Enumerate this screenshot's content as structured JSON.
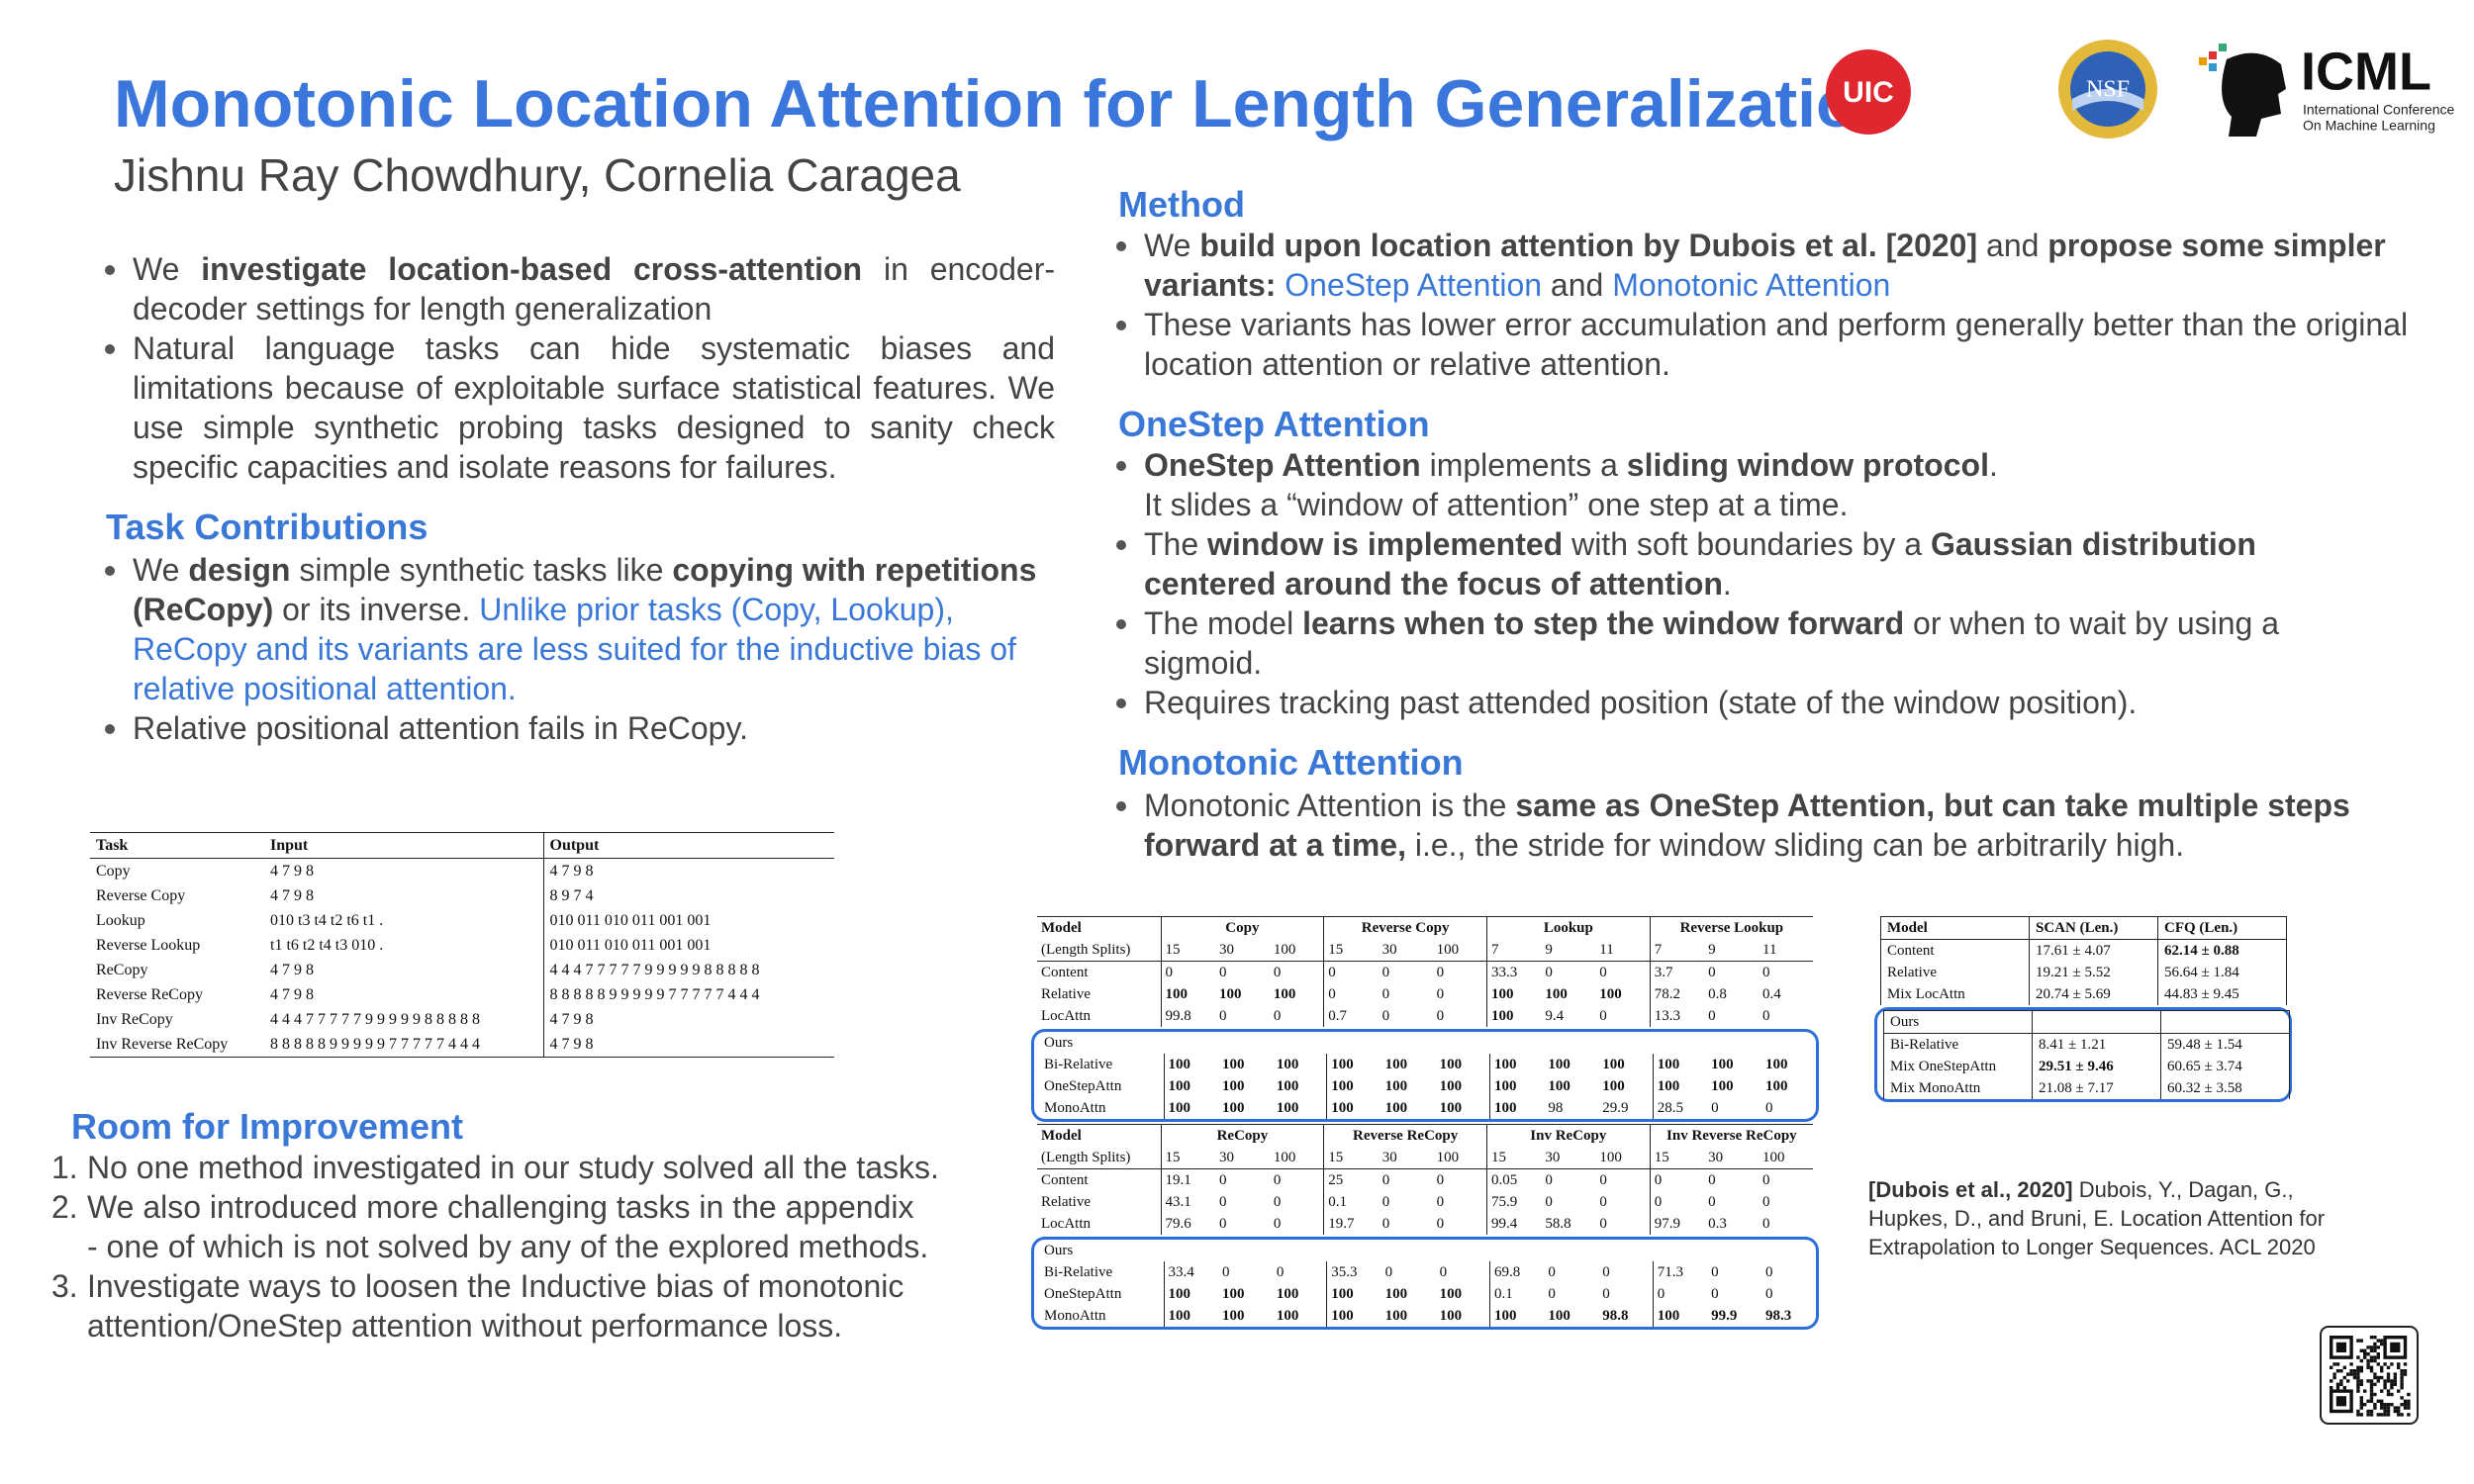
{
  "header": {
    "title": "Monotonic Location Attention for Length Generalization",
    "authors": "Jishnu Ray Chowdhury, Cornelia Caragea",
    "logos": {
      "uic": "UIC",
      "nsf": "NSF",
      "icml": "ICML",
      "icml_subtitle": [
        "International Conference",
        "On Machine Learning"
      ]
    }
  },
  "intro": {
    "bullets": [
      [
        {
          "text": "We "
        },
        {
          "text": "investigate location-based cross-attention",
          "style": "bold"
        },
        {
          "text": " in encoder-decoder settings for length generalization"
        }
      ],
      [
        {
          "text": "Natural language tasks can hide systematic biases and limitations because of exploitable surface statistical features. We use simple synthetic probing tasks designed to sanity check specific capacities and isolate reasons for failures."
        }
      ]
    ]
  },
  "task_contributions": {
    "heading": "Task Contributions",
    "bullets": [
      [
        {
          "text": "We "
        },
        {
          "text": "design",
          "style": "bold"
        },
        {
          "text": " simple synthetic tasks like "
        },
        {
          "text": "copying with repetitions (ReCopy)",
          "style": "bold"
        },
        {
          "text": " or its inverse. "
        },
        {
          "text": "Unlike prior tasks (Copy, Lookup), ReCopy and its variants are less suited for the inductive bias of relative positional attention.",
          "style": "blue"
        }
      ],
      [
        {
          "text": "Relative positional attention fails in ReCopy."
        }
      ]
    ]
  },
  "task_table": {
    "header": [
      "Task",
      "Input",
      "Output"
    ],
    "rows": [
      [
        "Copy",
        "4 7 9 8",
        "4 7 9 8"
      ],
      [
        "Reverse Copy",
        "4 7 9 8",
        "8 9 7 4"
      ],
      [
        "Lookup",
        "010 t3 t4 t2 t6 t1 .",
        "010 011 010 011 001 001"
      ],
      [
        "Reverse Lookup",
        "t1 t6 t2 t4 t3 010 .",
        "010 011 010 011 001 001"
      ],
      [
        "ReCopy",
        "4 7 9 8",
        "4 4 4 7 7 7 7 7 9 9 9 9 9 8 8 8 8 8"
      ],
      [
        "Reverse ReCopy",
        "4 7 9 8",
        "8 8 8 8 8 9 9 9 9 9 7 7 7 7 7 4 4 4"
      ],
      [
        "Inv ReCopy",
        "4 4 4 7 7 7 7 7 9 9 9 9 9 8 8 8 8 8",
        "4 7 9 8"
      ],
      [
        "Inv Reverse ReCopy",
        "8 8 8 8 8 9 9 9 9 9 7 7 7 7 7 4 4 4",
        "4 7 9 8"
      ]
    ]
  },
  "room_for_improvement": {
    "heading": "Room for Improvement",
    "items": [
      {
        "number": "1.",
        "text": "No one method investigated in our study solved all the tasks."
      },
      {
        "number": "2.",
        "text": "We also  introduced more challenging tasks in the appendix\n- one of which is not solved by any of the explored methods."
      },
      {
        "number": "3.",
        "text": "Investigate ways to loosen the Inductive bias of monotonic attention/OneStep attention without performance loss."
      }
    ]
  },
  "method": {
    "heading": "Method",
    "bullets": [
      [
        {
          "text": "We "
        },
        {
          "text": "build upon location attention by Dubois et al. [2020]",
          "style": "bold"
        },
        {
          "text": "  and "
        },
        {
          "text": "propose some simpler variants: ",
          "style": "bold"
        },
        {
          "text": "OneStep Attention",
          "style": "blue"
        },
        {
          "text": " and "
        },
        {
          "text": "Monotonic Attention",
          "style": "blue"
        }
      ],
      [
        {
          "text": "These variants has lower error accumulation and perform generally better than the original location attention or relative attention."
        }
      ]
    ]
  },
  "onestep": {
    "heading": "OneStep Attention",
    "bullets": [
      [
        {
          "text": "OneStep Attention",
          "style": "bold"
        },
        {
          "text": " implements a "
        },
        {
          "text": "sliding window protocol",
          "style": "bold"
        },
        {
          "text": ".\nIt slides a “window of attention” one step at a time."
        }
      ],
      [
        {
          "text": "The "
        },
        {
          "text": "window is implemented",
          "style": "bold"
        },
        {
          "text": " with soft boundaries by a "
        },
        {
          "text": "Gaussian distribution centered around the focus of attention",
          "style": "bold"
        },
        {
          "text": "."
        }
      ],
      [
        {
          "text": "The model "
        },
        {
          "text": "learns when to step the window forward",
          "style": "bold"
        },
        {
          "text": " or when to wait by using a sigmoid."
        }
      ],
      [
        {
          "text": "Requires tracking past attended position (state of the window position)."
        }
      ]
    ]
  },
  "monotonic": {
    "heading": "Monotonic Attention",
    "bullets": [
      [
        {
          "text": "Monotonic Attention is the "
        },
        {
          "text": "same as OneStep Attention, but can take multiple steps forward at a time,",
          "style": "bold"
        },
        {
          "text": " i.e., the stride for window sliding can be arbitrarily high."
        }
      ]
    ]
  },
  "results_table": {
    "header_model": "Model",
    "splits_label": "(Length Splits)",
    "ours_label": "Ours",
    "blocks": [
      {
        "groups": [
          "Copy",
          "Reverse Copy",
          "Lookup",
          "Reverse Lookup"
        ],
        "splits": [
          [
            "15",
            "30",
            "100"
          ],
          [
            "15",
            "30",
            "100"
          ],
          [
            "7",
            "9",
            "11"
          ],
          [
            "7",
            "9",
            "11"
          ]
        ],
        "rows": [
          {
            "model": "Content",
            "cells": [
              "0",
              "0",
              "0",
              "0",
              "0",
              "0",
              "33.3",
              "0",
              "0",
              "3.7",
              "0",
              "0"
            ]
          },
          {
            "model": "Relative",
            "cells": [
              "100",
              "100",
              "100",
              "0",
              "0",
              "0",
              "100",
              "100",
              "100",
              "78.2",
              "0.8",
              "0.4"
            ]
          },
          {
            "model": "LocAttn",
            "cells": [
              "99.8",
              "0",
              "0",
              "0.7",
              "0",
              "0",
              "100",
              "9.4",
              "0",
              "13.3",
              "0",
              "0"
            ]
          }
        ],
        "ours_rows": [
          {
            "model": "Bi-Relative",
            "cells": [
              "100",
              "100",
              "100",
              "100",
              "100",
              "100",
              "100",
              "100",
              "100",
              "100",
              "100",
              "100"
            ]
          },
          {
            "model": "OneStepAttn",
            "cells": [
              "100",
              "100",
              "100",
              "100",
              "100",
              "100",
              "100",
              "100",
              "100",
              "100",
              "100",
              "100"
            ]
          },
          {
            "model": "MonoAttn",
            "cells": [
              "100",
              "100",
              "100",
              "100",
              "100",
              "100",
              "100",
              "98",
              "29.9",
              "28.5",
              "0",
              "0"
            ]
          }
        ]
      },
      {
        "groups": [
          "ReCopy",
          "Reverse ReCopy",
          "Inv ReCopy",
          "Inv Reverse ReCopy"
        ],
        "splits": [
          [
            "15",
            "30",
            "100"
          ],
          [
            "15",
            "30",
            "100"
          ],
          [
            "15",
            "30",
            "100"
          ],
          [
            "15",
            "30",
            "100"
          ]
        ],
        "rows": [
          {
            "model": "Content",
            "cells": [
              "19.1",
              "0",
              "0",
              "25",
              "0",
              "0",
              "0.05",
              "0",
              "0",
              "0",
              "0",
              "0"
            ]
          },
          {
            "model": "Relative",
            "cells": [
              "43.1",
              "0",
              "0",
              "0.1",
              "0",
              "0",
              "75.9",
              "0",
              "0",
              "0",
              "0",
              "0"
            ]
          },
          {
            "model": "LocAttn",
            "cells": [
              "79.6",
              "0",
              "0",
              "19.7",
              "0",
              "0",
              "99.4",
              "58.8",
              "0",
              "97.9",
              "0.3",
              "0"
            ]
          }
        ],
        "ours_rows": [
          {
            "model": "Bi-Relative",
            "cells": [
              "33.4",
              "0",
              "0",
              "35.3",
              "0",
              "0",
              "69.8",
              "0",
              "0",
              "71.3",
              "0",
              "0"
            ]
          },
          {
            "model": "OneStepAttn",
            "cells": [
              "100",
              "100",
              "100",
              "100",
              "100",
              "100",
              "0.1",
              "0",
              "0",
              "0",
              "0",
              "0"
            ]
          },
          {
            "model": "MonoAttn",
            "cells": [
              "100",
              "100",
              "100",
              "100",
              "100",
              "100",
              "100",
              "100",
              "98.8",
              "100",
              "99.9",
              "98.3"
            ]
          }
        ]
      }
    ]
  },
  "scan_cfq_table": {
    "header": [
      "Model",
      "SCAN (Len.)",
      "CFQ (Len.)"
    ],
    "ours_label": "Ours",
    "rows": [
      [
        "Content",
        "17.61 ± 4.07",
        "62.14 ± 0.88"
      ],
      [
        "Relative",
        "19.21 ± 5.52",
        "56.64 ± 1.84"
      ],
      [
        "Mix LocAttn",
        "20.74 ± 5.69",
        "44.83 ± 9.45"
      ]
    ],
    "ours_rows": [
      [
        "Bi-Relative",
        "8.41 ± 1.21",
        "59.48 ± 1.54"
      ],
      [
        "Mix OneStepAttn",
        "29.51 ± 9.46",
        "60.65 ± 3.74"
      ],
      [
        "Mix MonoAttn",
        "21.08 ± 7.17",
        "60.32 ± 3.58"
      ]
    ]
  },
  "reference": [
    {
      "text": "[Dubois et al., 2020]",
      "style": "bold"
    },
    {
      "text": " Dubois, Y., Dagan, G., Hupkes, D., and Bruni, E. Location Attention for Extrapolation to Longer Sequences. ACL 2020"
    }
  ]
}
